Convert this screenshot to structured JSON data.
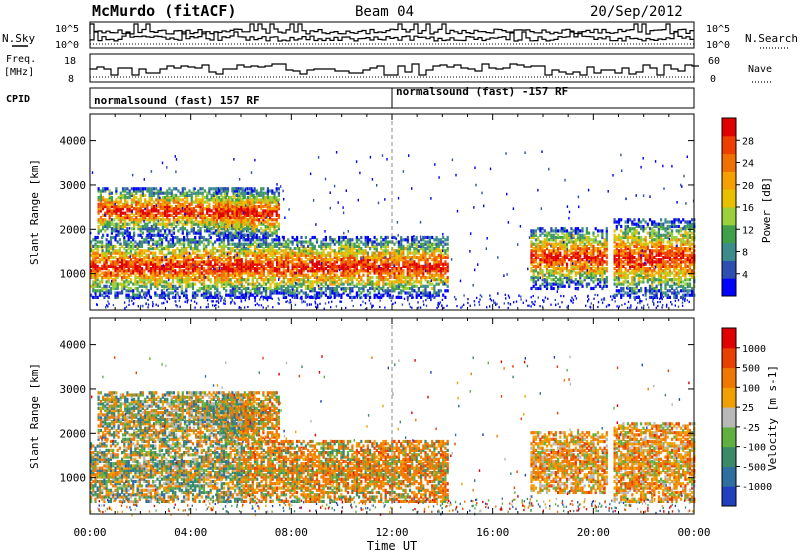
{
  "header": {
    "station": "McMurdo (fitACF)",
    "beam": "Beam 04",
    "date": "20/Sep/2012"
  },
  "left_labels": {
    "nsky": "N.Sky",
    "freq_line1": "Freq.",
    "freq_line2": "[MHz]",
    "cpid": "CPID"
  },
  "right_labels": {
    "nsearch": "N.Search",
    "nave": "Nave"
  },
  "noise_panel": {
    "left_ticks": [
      "10^5",
      "10^0"
    ],
    "right_ticks": [
      "10^5",
      "10^0"
    ]
  },
  "freq_panel": {
    "left_ticks": [
      "18",
      "8"
    ],
    "right_ticks": [
      "60",
      "0"
    ]
  },
  "cpid_panel": {
    "left_text": "normalsound (fast) 157 RF",
    "right_text": "normalsound (fast) -157 RF"
  },
  "power_panel": {
    "ylabel": "Slant Range [km]",
    "yticks": [
      "4000",
      "3000",
      "2000",
      "1000"
    ],
    "cbar_label": "Power [dB]",
    "cbar_ticks": [
      "28",
      "24",
      "20",
      "16",
      "12",
      "8",
      "4"
    ],
    "colors": [
      "#0000ff",
      "#2f4fb0",
      "#3c8c8c",
      "#40a04a",
      "#9ad03a",
      "#e8c000",
      "#f5a000",
      "#f07000",
      "#ee3e00",
      "#e00000"
    ]
  },
  "velocity_panel": {
    "ylabel": "Slant Range [km]",
    "yticks": [
      "4000",
      "3000",
      "2000",
      "1000"
    ],
    "cbar_label": "Velocity [m s-1]",
    "cbar_ticks": [
      "1000",
      "500",
      "100",
      "25",
      "-25",
      "-100",
      "-500",
      "-1000"
    ],
    "colors": [
      "#2040c0",
      "#2f6f9f",
      "#3a8a6a",
      "#60b040",
      "#b8b8b8",
      "#f0a000",
      "#f07800",
      "#e84000",
      "#e00000"
    ]
  },
  "xaxis": {
    "ticks": [
      "00:00",
      "04:00",
      "08:00",
      "12:00",
      "16:00",
      "20:00",
      "00:00"
    ],
    "label": "Time UT"
  },
  "chart_data": {
    "type": "heatmap",
    "title": "McMurdo (fitACF) Beam 04 20/Sep/2012",
    "xlabel": "Time UT",
    "ylabel": "Slant Range [km]",
    "xlim_hours": [
      0,
      24
    ],
    "ylim_km": [
      180,
      4600
    ],
    "yticks": [
      1000,
      2000,
      3000,
      4000
    ],
    "power_range_db": [
      0,
      30
    ],
    "velocity_range_ms": [
      -1000,
      1000
    ],
    "cpid_change_hour": 12,
    "scatter_regions": [
      {
        "t0": 0.0,
        "t1": 14.2,
        "r0": 500,
        "r1": 1900
      },
      {
        "t0": 0.3,
        "t1": 6.5,
        "r0": 1900,
        "r1": 3000
      },
      {
        "t0": 5.0,
        "t1": 7.5,
        "r0": 1800,
        "r1": 3000
      },
      {
        "t0": 17.5,
        "t1": 20.5,
        "r0": 700,
        "r1": 2100
      },
      {
        "t0": 20.8,
        "t1": 24.0,
        "r0": 500,
        "r1": 2300
      }
    ]
  }
}
